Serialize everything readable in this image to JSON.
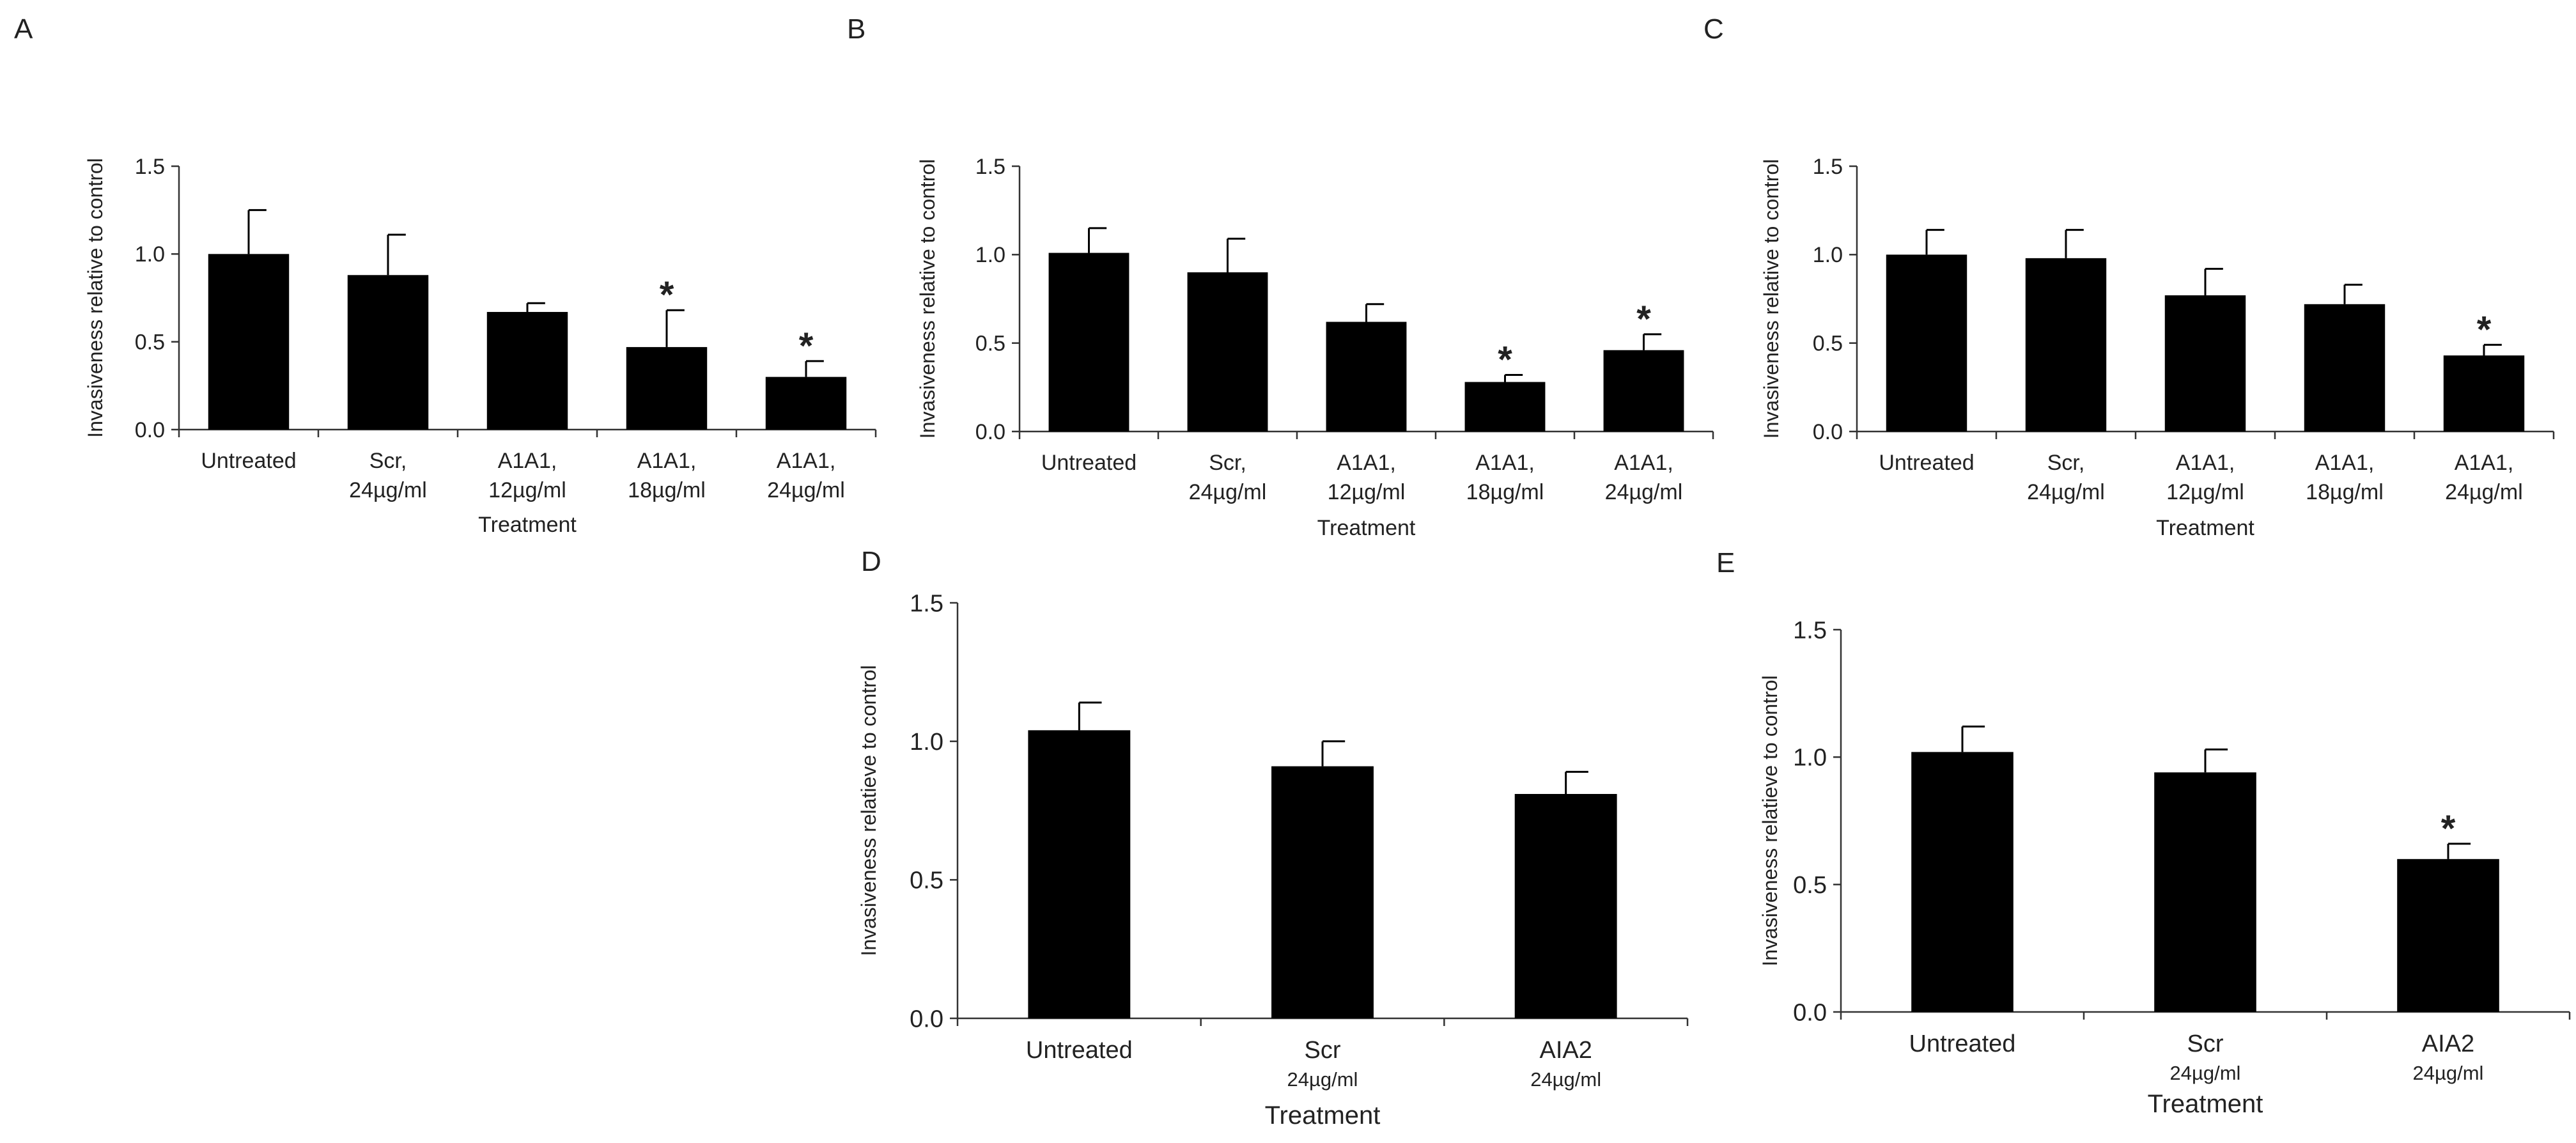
{
  "chart_data": [
    {
      "panel": "A",
      "type": "bar",
      "ylabel": "Invasiveness relative to control",
      "xlabel": "Treatment",
      "ylim": [
        0,
        1.5
      ],
      "yticks": [
        "0.0",
        "0.5",
        "1.0",
        "1.5"
      ],
      "categories": [
        [
          "Untreated"
        ],
        [
          "Scr,",
          "24µg/ml"
        ],
        [
          "A1A1,",
          "12µg/ml"
        ],
        [
          "A1A1,",
          "18µg/ml"
        ],
        [
          "A1A1,",
          "24µg/ml"
        ]
      ],
      "values": [
        1.0,
        0.88,
        0.67,
        0.47,
        0.3
      ],
      "errors": [
        0.25,
        0.23,
        0.05,
        0.21,
        0.09
      ],
      "significant": [
        false,
        false,
        false,
        true,
        true
      ]
    },
    {
      "panel": "B",
      "type": "bar",
      "ylabel": "Invasiveness relative to control",
      "xlabel": "Treatment",
      "ylim": [
        0,
        1.5
      ],
      "yticks": [
        "0.0",
        "0.5",
        "1.0",
        "1.5"
      ],
      "categories": [
        [
          "Untreated"
        ],
        [
          "Scr,",
          "24µg/ml"
        ],
        [
          "A1A1,",
          "12µg/ml"
        ],
        [
          "A1A1,",
          "18µg/ml"
        ],
        [
          "A1A1,",
          "24µg/ml"
        ]
      ],
      "values": [
        1.01,
        0.9,
        0.62,
        0.28,
        0.46
      ],
      "errors": [
        0.14,
        0.19,
        0.1,
        0.04,
        0.09
      ],
      "significant": [
        false,
        false,
        false,
        true,
        true
      ]
    },
    {
      "panel": "C",
      "type": "bar",
      "ylabel": "Invasiveness relative to control",
      "xlabel": "Treatment",
      "ylim": [
        0,
        1.5
      ],
      "yticks": [
        "0.0",
        "0.5",
        "1.0",
        "1.5"
      ],
      "categories": [
        [
          "Untreated"
        ],
        [
          "Scr,",
          "24µg/ml"
        ],
        [
          "A1A1,",
          "12µg/ml"
        ],
        [
          "A1A1,",
          "18µg/ml"
        ],
        [
          "A1A1,",
          "24µg/ml"
        ]
      ],
      "values": [
        1.0,
        0.98,
        0.77,
        0.72,
        0.43
      ],
      "errors": [
        0.14,
        0.16,
        0.15,
        0.11,
        0.06
      ],
      "significant": [
        false,
        false,
        false,
        false,
        true
      ]
    },
    {
      "panel": "D",
      "type": "bar",
      "ylabel": "Invasiveness relatieve to control",
      "xlabel": "Treatment",
      "ylim": [
        0,
        1.5
      ],
      "yticks": [
        "0.0",
        "0.5",
        "1.0",
        "1.5"
      ],
      "categories": [
        [
          "Untreated"
        ],
        [
          "Scr",
          "24µg/ml"
        ],
        [
          "AIA2",
          "24µg/ml"
        ]
      ],
      "values": [
        1.04,
        0.91,
        0.81
      ],
      "errors": [
        0.1,
        0.09,
        0.08
      ],
      "significant": [
        false,
        false,
        false
      ]
    },
    {
      "panel": "E",
      "type": "bar",
      "ylabel": "Invasiveness relatieve to control",
      "xlabel": "Treatment",
      "ylim": [
        0,
        1.5
      ],
      "yticks": [
        "0.0",
        "0.5",
        "1.0",
        "1.5"
      ],
      "categories": [
        [
          "Untreated"
        ],
        [
          "Scr",
          "24µg/ml"
        ],
        [
          "AIA2",
          "24µg/ml"
        ]
      ],
      "values": [
        1.02,
        0.94,
        0.6
      ],
      "errors": [
        0.1,
        0.09,
        0.06
      ],
      "significant": [
        false,
        false,
        true
      ]
    }
  ]
}
